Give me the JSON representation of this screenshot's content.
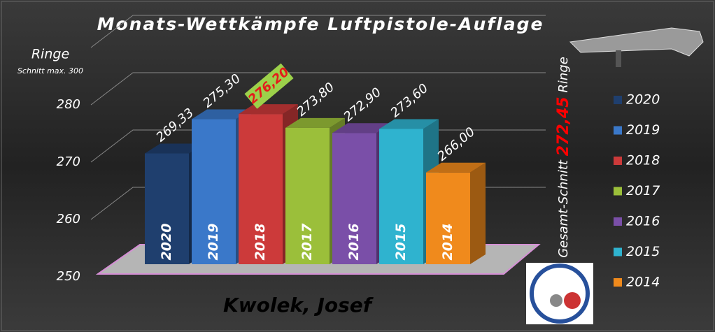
{
  "chart_data": {
    "type": "bar3d",
    "title": "Monats-Wettkämpfe Luftpistole-Auflage",
    "y_label": "Ringe",
    "y_sublabel": "Schnitt max. 300",
    "caption": "Kwolek, Josef",
    "average": {
      "prefix": "Gesamt-Schnitt",
      "value": 272.45,
      "label": "272,45",
      "suffix": "Ringe"
    },
    "categories": [
      "2020",
      "2019",
      "2018",
      "2017",
      "2016",
      "2015",
      "2014"
    ],
    "values": [
      269.33,
      275.3,
      276.2,
      273.8,
      272.9,
      273.6,
      266.0
    ],
    "value_labels": [
      "269,33",
      "275,30",
      "276,20",
      "273,80",
      "272,90",
      "273,60",
      "266,00"
    ],
    "colors": [
      "#1f3f6e",
      "#3a78c9",
      "#cc3a3a",
      "#9bbf3a",
      "#7a4fa8",
      "#2fb3cf",
      "#f08a1c"
    ],
    "highlight_index": 2,
    "ylim": [
      250,
      290
    ],
    "yticks": [
      250,
      260,
      270,
      280
    ],
    "grid": true,
    "legend": "right"
  }
}
